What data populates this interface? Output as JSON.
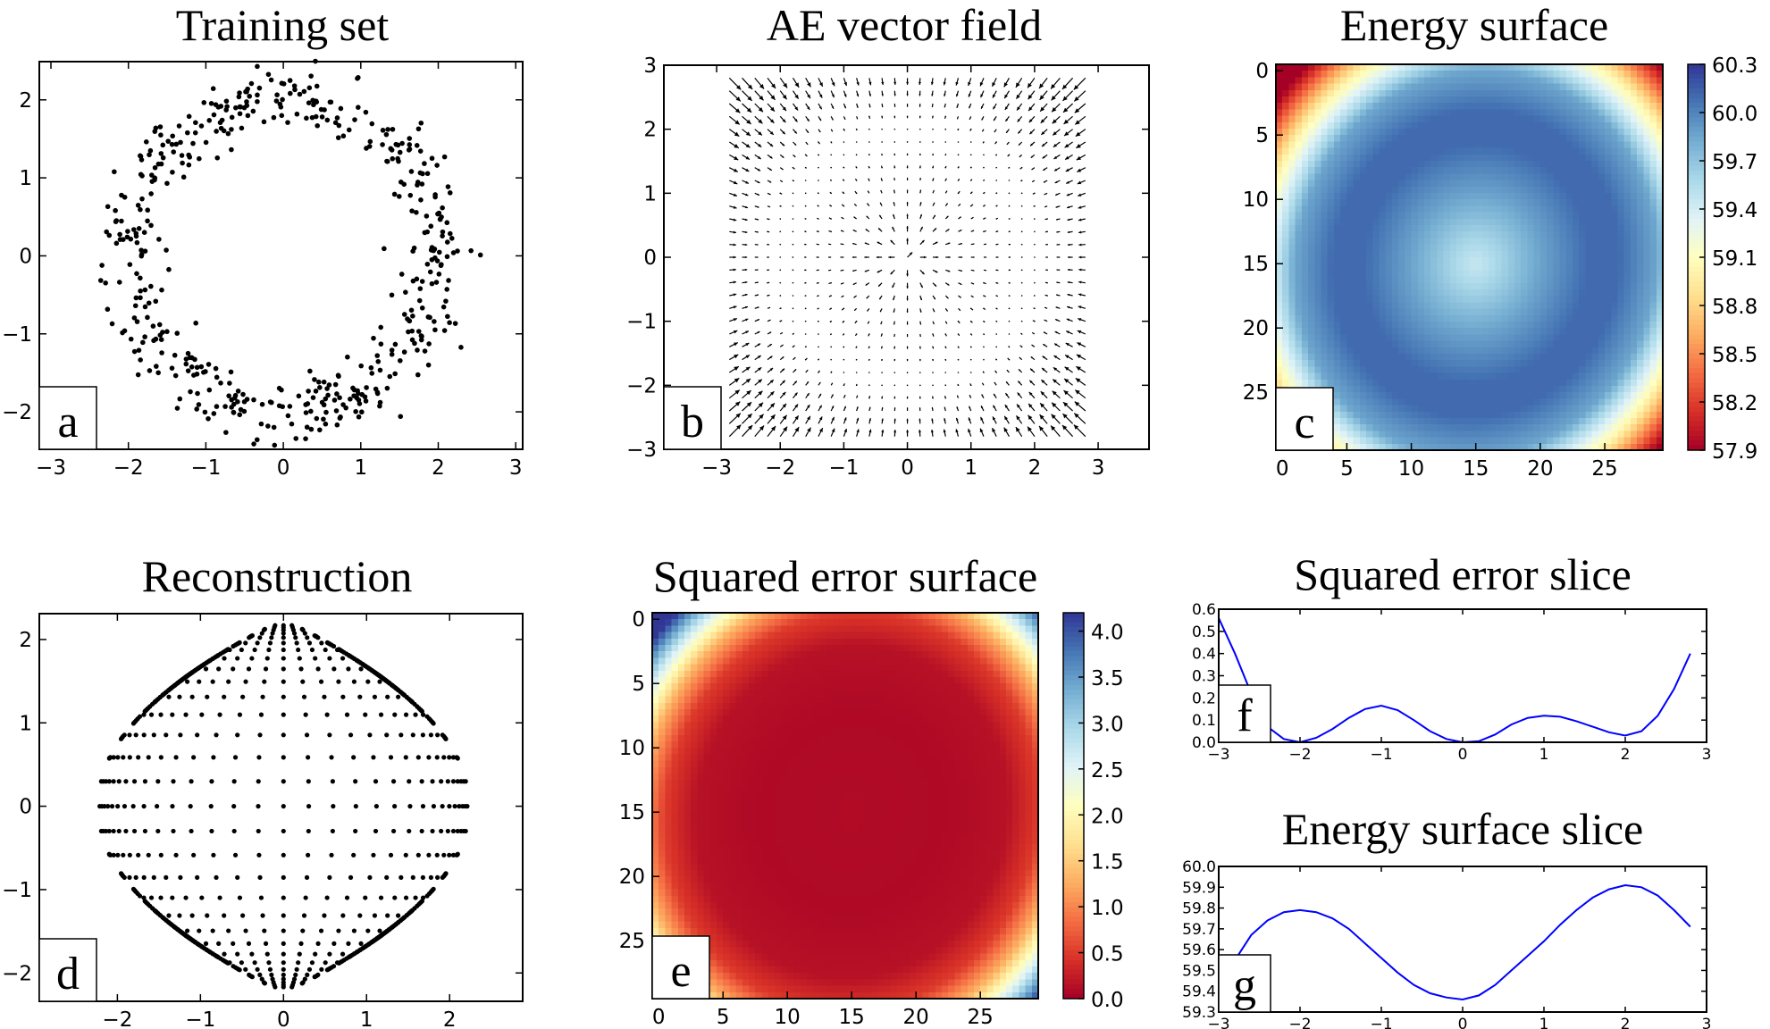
{
  "chart_data": [
    {
      "id": "a",
      "type": "scatter",
      "title": "Training set",
      "panel_label": "a",
      "xlim": [
        -3.15,
        3.09
      ],
      "ylim": [
        -2.48,
        2.49
      ],
      "xticks": [
        -3,
        -2,
        -1,
        0,
        1,
        2,
        3
      ],
      "yticks": [
        -2,
        -1,
        0,
        1,
        2
      ],
      "generator": {
        "shape": "noisy ring",
        "radius": 2.0,
        "noise_std": 0.2,
        "n_points": 500
      },
      "marker_color": "#000000"
    },
    {
      "id": "b",
      "type": "quiver",
      "title": "AE vector field",
      "panel_label": "b",
      "xlim": [
        -3.83,
        3.8
      ],
      "ylim": [
        -3,
        3
      ],
      "xticks": [
        -3,
        -2,
        -1,
        0,
        1,
        2,
        3
      ],
      "yticks": [
        -3,
        -2,
        -1,
        0,
        1,
        2,
        3
      ],
      "grid": {
        "start": -2.8,
        "stop": 2.8,
        "step": 0.2
      },
      "field": "points toward ring of radius 2; magnitude grows with distance from ring"
    },
    {
      "id": "c",
      "type": "heatmap",
      "title": "Energy surface",
      "panel_label": "c",
      "grid_size": 30,
      "xticks": [
        0,
        5,
        10,
        15,
        20,
        25
      ],
      "yticks": [
        0,
        5,
        10,
        15,
        20,
        25
      ],
      "colormap": "RdYlBu",
      "vmin": 57.9,
      "vmax": 60.3,
      "radial_profile": {
        "r": [
          0,
          1,
          1.8,
          2.3,
          2.9,
          3.5,
          4.1
        ],
        "value": [
          59.45,
          59.85,
          60.1,
          60.1,
          59.85,
          59.0,
          57.9
        ]
      },
      "colorbar_ticks": [
        "60.3",
        "60.0",
        "59.7",
        "59.4",
        "59.1",
        "58.8",
        "58.5",
        "58.2",
        "57.9"
      ]
    },
    {
      "id": "d",
      "type": "scatter",
      "title": "Reconstruction",
      "panel_label": "d",
      "xlim": [
        -2.94,
        2.88
      ],
      "ylim": [
        -2.34,
        2.31
      ],
      "xticks": [
        -2,
        -1,
        0,
        1,
        2
      ],
      "yticks": [
        -2,
        -1,
        0,
        1,
        2
      ],
      "generator": {
        "shape": "reconstructed input grid",
        "grid_start": -3,
        "grid_stop": 3,
        "grid_step": 0.2,
        "max_radius": 2.2
      },
      "marker_color": "#000000"
    },
    {
      "id": "e",
      "type": "heatmap",
      "title": "Squared error surface",
      "panel_label": "e",
      "grid_size": 30,
      "xticks": [
        0,
        5,
        10,
        15,
        20,
        25
      ],
      "yticks": [
        0,
        5,
        10,
        15,
        20,
        25
      ],
      "colormap": "RdYlBu",
      "vmin": 0.0,
      "vmax": 4.2,
      "radial_profile": {
        "r": [
          0,
          1.5,
          2.5,
          3.0,
          3.4,
          3.8,
          4.2
        ],
        "value": [
          0.1,
          0.08,
          0.15,
          0.5,
          1.3,
          2.6,
          4.2
        ]
      },
      "colorbar_ticks": [
        "4.0",
        "3.5",
        "3.0",
        "2.5",
        "2.0",
        "1.5",
        "1.0",
        "0.5",
        "0.0"
      ],
      "colorbar_tick_values": [
        4.0,
        3.5,
        3.0,
        2.5,
        2.0,
        1.5,
        1.0,
        0.5,
        0.0
      ]
    },
    {
      "id": "f",
      "type": "line",
      "title": "Squared error slice",
      "panel_label": "f",
      "xlim": [
        -3,
        3
      ],
      "ylim": [
        0.0,
        0.6
      ],
      "xticks": [
        "-3",
        "-2",
        "-1",
        "0",
        "1",
        "2",
        "3"
      ],
      "yticks": [
        "0.0",
        "0.1",
        "0.2",
        "0.3",
        "0.4",
        "0.5",
        "0.6"
      ],
      "line_color": "#0000ff",
      "x": [
        -3,
        -2.8,
        -2.6,
        -2.4,
        -2.2,
        -2.0,
        -1.8,
        -1.6,
        -1.4,
        -1.2,
        -1.0,
        -0.8,
        -0.6,
        -0.4,
        -0.2,
        0.0,
        0.2,
        0.4,
        0.6,
        0.8,
        1.0,
        1.2,
        1.4,
        1.6,
        1.8,
        2.0,
        2.2,
        2.4,
        2.6,
        2.8
      ],
      "y": [
        0.56,
        0.4,
        0.22,
        0.07,
        0.015,
        0.0,
        0.02,
        0.06,
        0.11,
        0.15,
        0.165,
        0.145,
        0.1,
        0.05,
        0.015,
        0.0,
        0.005,
        0.035,
        0.08,
        0.11,
        0.12,
        0.115,
        0.095,
        0.07,
        0.045,
        0.03,
        0.05,
        0.12,
        0.24,
        0.4
      ]
    },
    {
      "id": "g",
      "type": "line",
      "title": "Energy surface slice",
      "panel_label": "g",
      "xlim": [
        -3,
        3
      ],
      "ylim": [
        59.3,
        60.0
      ],
      "xticks": [
        "-3",
        "-2",
        "-1",
        "0",
        "1",
        "2",
        "3"
      ],
      "yticks": [
        "59.3",
        "59.4",
        "59.5",
        "59.6",
        "59.7",
        "59.8",
        "59.9",
        "60.0"
      ],
      "line_color": "#0000ff",
      "x": [
        -2.8,
        -2.6,
        -2.4,
        -2.2,
        -2.0,
        -1.8,
        -1.6,
        -1.4,
        -1.2,
        -1.0,
        -0.8,
        -0.6,
        -0.4,
        -0.2,
        0.0,
        0.2,
        0.4,
        0.6,
        0.8,
        1.0,
        1.2,
        1.4,
        1.6,
        1.8,
        2.0,
        2.2,
        2.4,
        2.6,
        2.8
      ],
      "y": [
        59.55,
        59.67,
        59.74,
        59.78,
        59.79,
        59.78,
        59.75,
        59.7,
        59.63,
        59.56,
        59.49,
        59.43,
        59.39,
        59.37,
        59.36,
        59.38,
        59.43,
        59.5,
        59.57,
        59.64,
        59.72,
        59.79,
        59.85,
        59.89,
        59.91,
        59.9,
        59.86,
        59.79,
        59.71
      ]
    }
  ]
}
